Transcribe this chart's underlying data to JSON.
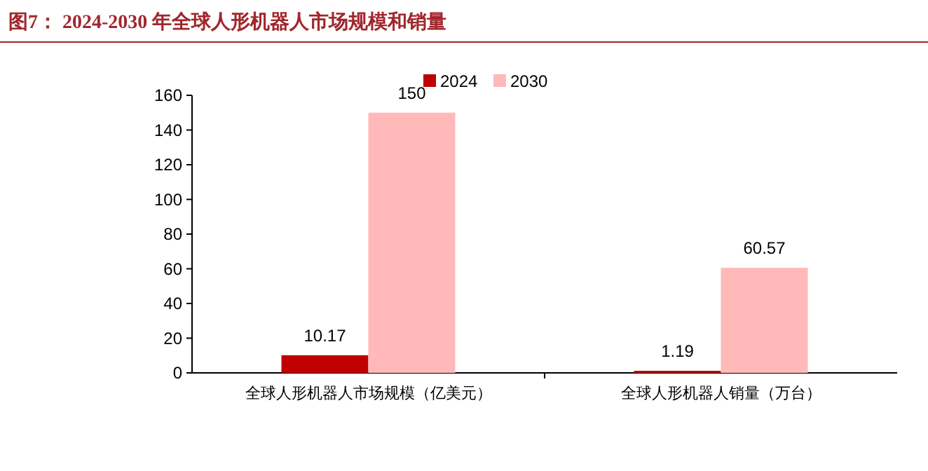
{
  "chart_data": {
    "type": "bar",
    "title": "图7： 2024-2030 年全球人形机器人市场规模和销量",
    "categories": [
      "全球人形机器人市场规模（亿美元）",
      "全球人形机器人销量（万台）"
    ],
    "series": [
      {
        "name": "2024",
        "color": "#c00000",
        "values": [
          10.17,
          1.19
        ]
      },
      {
        "name": "2030",
        "color": "#ffb9b9",
        "values": [
          150,
          60.57
        ]
      }
    ],
    "ylim": [
      0,
      160
    ],
    "yticks": [
      0,
      20,
      40,
      60,
      80,
      100,
      120,
      140,
      160
    ],
    "data_labels": true,
    "legend": "top"
  }
}
